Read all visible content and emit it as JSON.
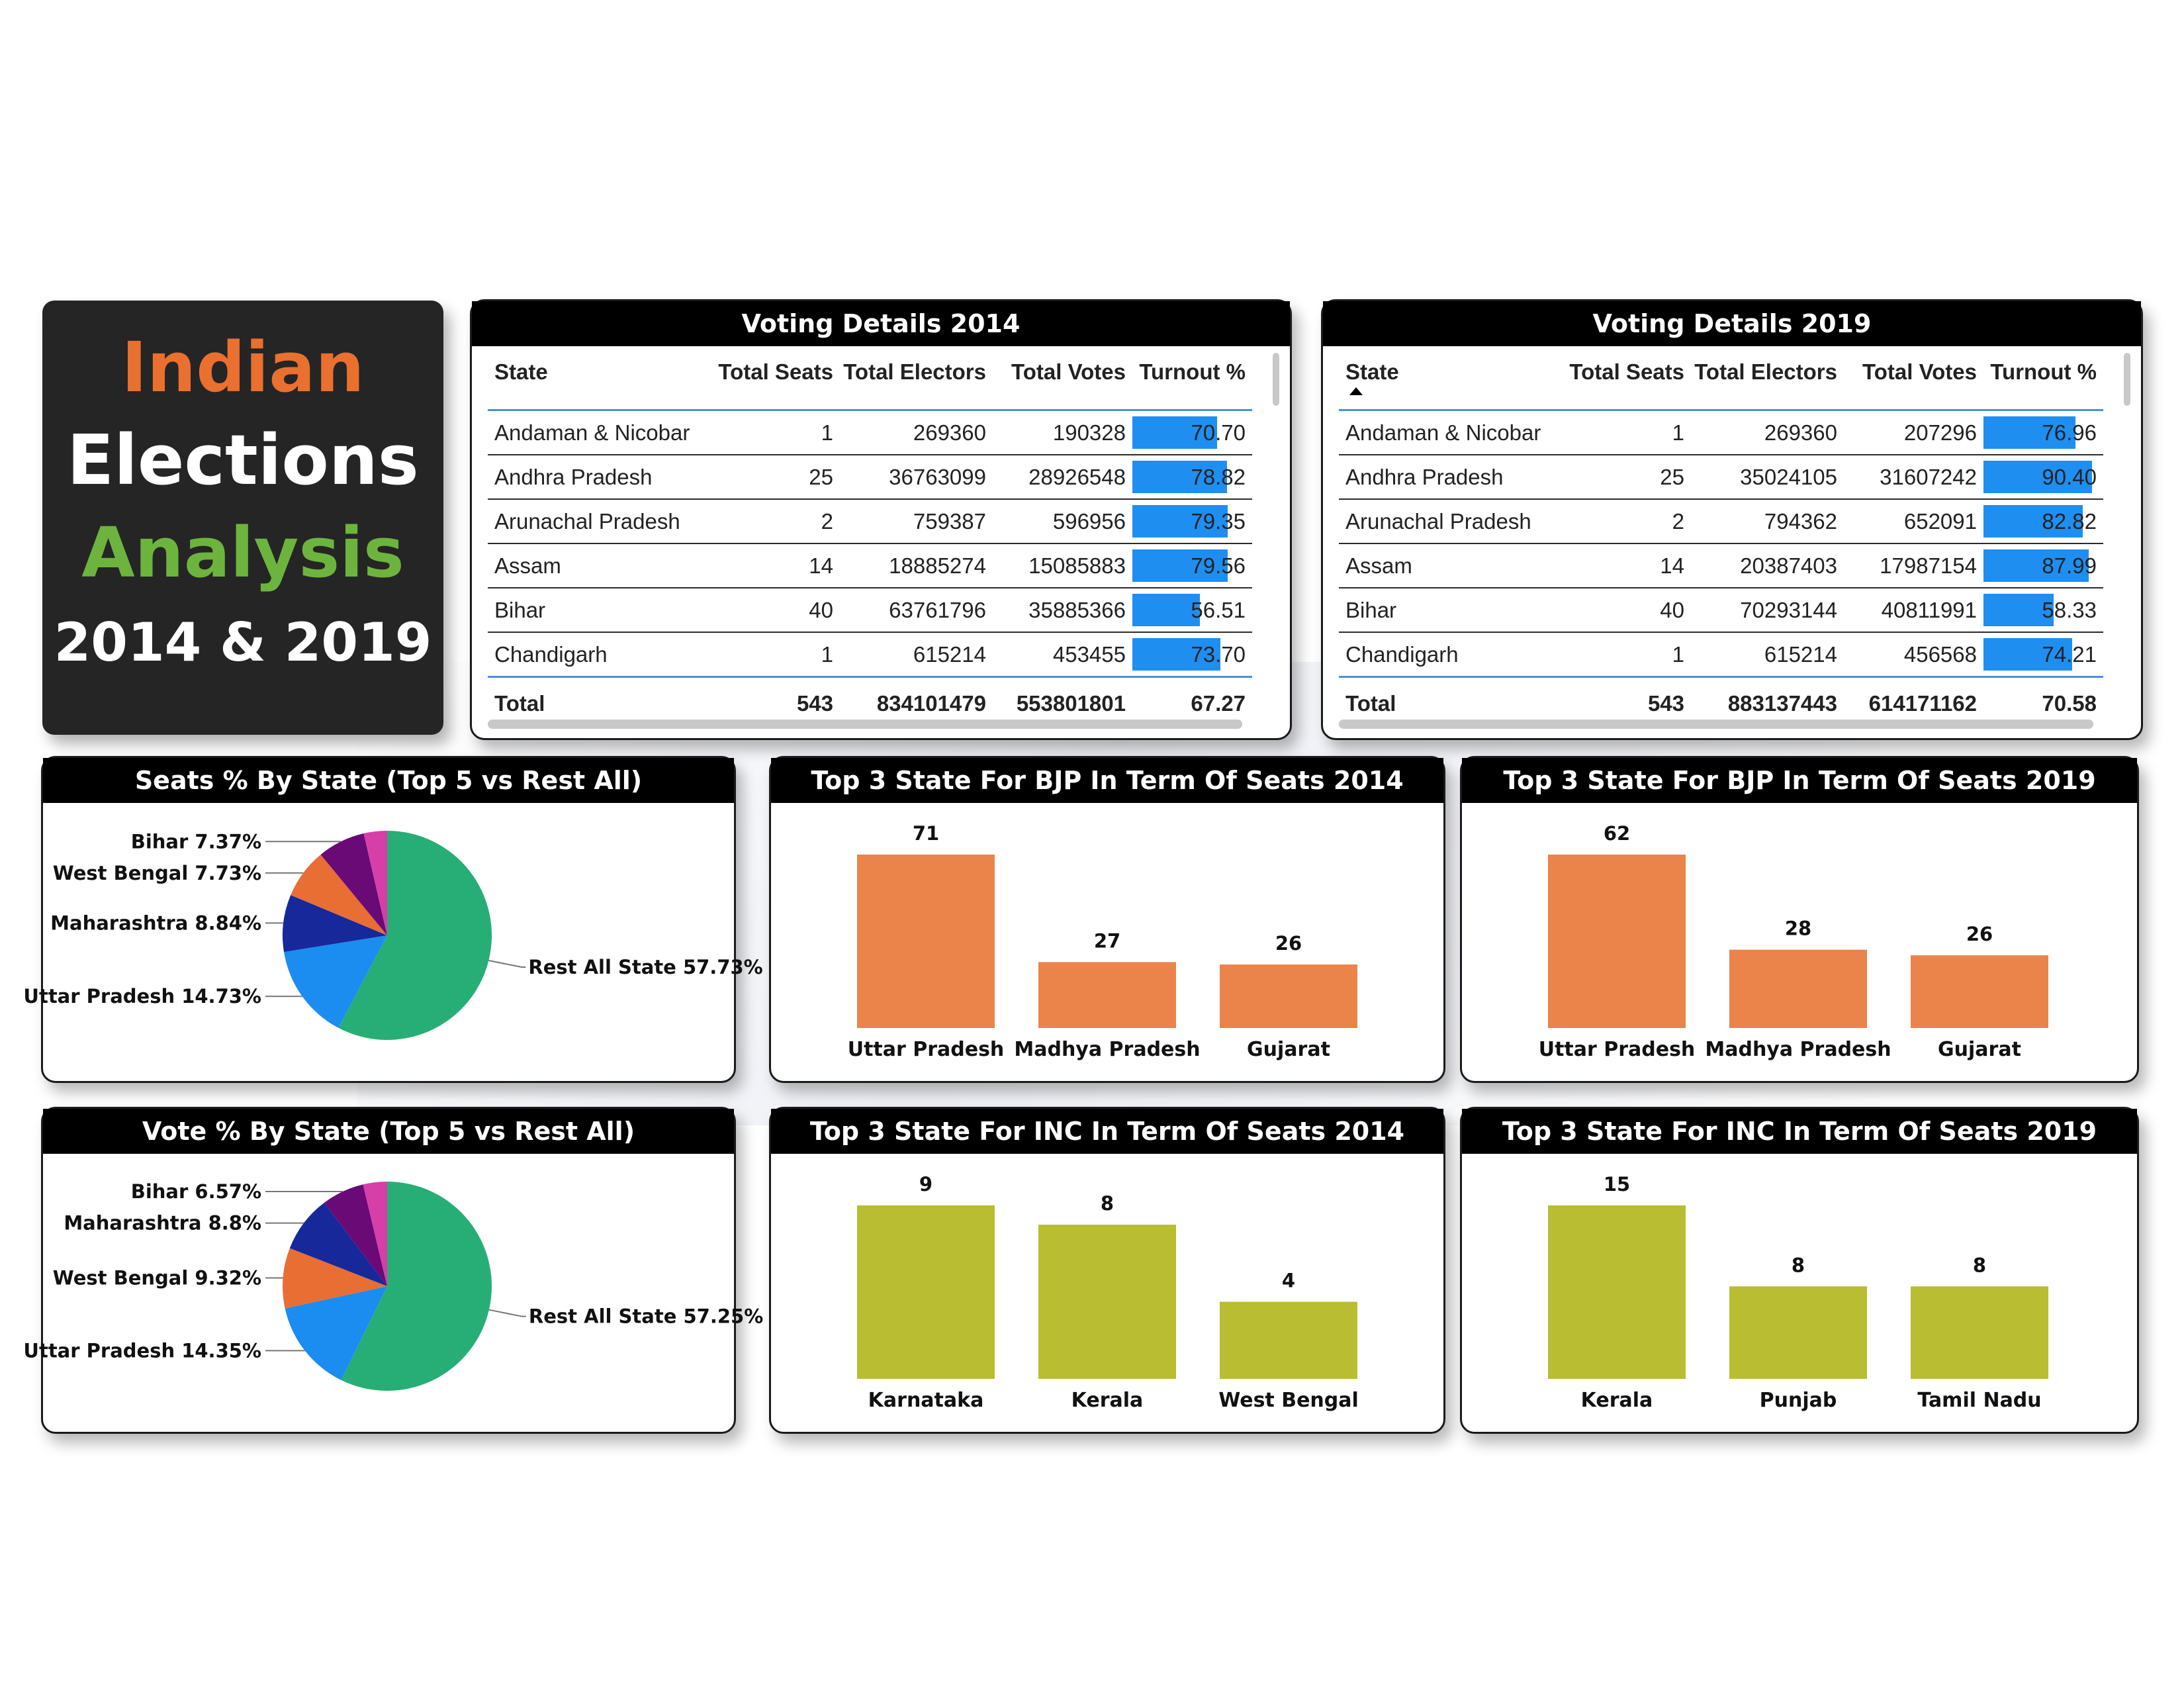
{
  "title": {
    "line1": "Indian",
    "line2": "Elections",
    "line3": "Analysis",
    "line4": "2014 & 2019"
  },
  "table_headers": [
    "State",
    "Total Seats",
    "Total Electors",
    "Total Votes",
    "Turnout %"
  ],
  "table2014": {
    "title": "Voting Details 2014",
    "rows": [
      {
        "state": "Andaman & Nicobar",
        "seats": "1",
        "electors": "269360",
        "votes": "190328",
        "turnout": "70.70"
      },
      {
        "state": "Andhra Pradesh",
        "seats": "25",
        "electors": "36763099",
        "votes": "28926548",
        "turnout": "78.82"
      },
      {
        "state": "Arunachal Pradesh",
        "seats": "2",
        "electors": "759387",
        "votes": "596956",
        "turnout": "79.35"
      },
      {
        "state": "Assam",
        "seats": "14",
        "electors": "18885274",
        "votes": "15085883",
        "turnout": "79.56"
      },
      {
        "state": "Bihar",
        "seats": "40",
        "electors": "63761796",
        "votes": "35885366",
        "turnout": "56.51"
      },
      {
        "state": "Chandigarh",
        "seats": "1",
        "electors": "615214",
        "votes": "453455",
        "turnout": "73.70"
      }
    ],
    "total": {
      "label": "Total",
      "seats": "543",
      "electors": "834101479",
      "votes": "553801801",
      "turnout": "67.27"
    }
  },
  "table2019": {
    "title": "Voting Details 2019",
    "rows": [
      {
        "state": "Andaman & Nicobar",
        "seats": "1",
        "electors": "269360",
        "votes": "207296",
        "turnout": "76.96"
      },
      {
        "state": "Andhra Pradesh",
        "seats": "25",
        "electors": "35024105",
        "votes": "31607242",
        "turnout": "90.40"
      },
      {
        "state": "Arunachal Pradesh",
        "seats": "2",
        "electors": "794362",
        "votes": "652091",
        "turnout": "82.82"
      },
      {
        "state": "Assam",
        "seats": "14",
        "electors": "20387403",
        "votes": "17987154",
        "turnout": "87.99"
      },
      {
        "state": "Bihar",
        "seats": "40",
        "electors": "70293144",
        "votes": "40811991",
        "turnout": "58.33"
      },
      {
        "state": "Chandigarh",
        "seats": "1",
        "electors": "615214",
        "votes": "456568",
        "turnout": "74.21"
      }
    ],
    "total": {
      "label": "Total",
      "seats": "543",
      "electors": "883137443",
      "votes": "614171162",
      "turnout": "70.58"
    }
  },
  "colors": {
    "bjp_bar": "#eb844a",
    "inc_bar": "#b8bd31",
    "turnout_bar": "#1f8ef1",
    "title_orange": "#e9702f",
    "title_green": "#6db43f",
    "pie": {
      "Rest All State": "#27ae77",
      "Uttar Pradesh": "#1b8cf0",
      "Maharashtra": "#16289a",
      "West Bengal": "#e86e34",
      "Bihar": "#6a0a77",
      "Other": "#d63fa7"
    }
  },
  "chart_data": [
    {
      "type": "pie",
      "title": "Seats % By State (Top 5 vs Rest All)",
      "slices": [
        {
          "label": "Rest All State 57.73%",
          "name": "Rest All State",
          "value": 57.73
        },
        {
          "label": "Uttar Pradesh 14.73%",
          "name": "Uttar Pradesh",
          "value": 14.73
        },
        {
          "label": "Maharashtra 8.84%",
          "name": "Maharashtra",
          "value": 8.84
        },
        {
          "label": "West Bengal 7.73%",
          "name": "West Bengal",
          "value": 7.73
        },
        {
          "label": "Bihar 7.37%",
          "name": "Bihar",
          "value": 7.37
        },
        {
          "label": "",
          "name": "Other",
          "value": 3.6
        }
      ]
    },
    {
      "type": "pie",
      "title": "Vote % By State (Top 5 vs Rest All)",
      "slices": [
        {
          "label": "Rest All State 57.25%",
          "name": "Rest All State",
          "value": 57.25
        },
        {
          "label": "Uttar Pradesh 14.35%",
          "name": "Uttar Pradesh",
          "value": 14.35
        },
        {
          "label": "West Bengal 9.32%",
          "name": "West Bengal",
          "value": 9.32
        },
        {
          "label": "Maharashtra 8.8%",
          "name": "Maharashtra",
          "value": 8.8
        },
        {
          "label": "Bihar 6.57%",
          "name": "Bihar",
          "value": 6.57
        },
        {
          "label": "",
          "name": "Other",
          "value": 3.71
        }
      ]
    },
    {
      "type": "bar",
      "title": "Top 3 State For BJP In Term Of Seats 2014",
      "categories": [
        "Uttar Pradesh",
        "Madhya Pradesh",
        "Gujarat"
      ],
      "values": [
        71,
        27,
        26
      ],
      "color": "bjp"
    },
    {
      "type": "bar",
      "title": "Top 3 State For BJP In Term Of Seats 2019",
      "categories": [
        "Uttar Pradesh",
        "Madhya Pradesh",
        "Gujarat"
      ],
      "values": [
        62,
        28,
        26
      ],
      "color": "bjp"
    },
    {
      "type": "bar",
      "title": "Top 3 State For INC In Term Of Seats 2014",
      "categories": [
        "Karnataka",
        "Kerala",
        "West Bengal"
      ],
      "values": [
        9,
        8,
        4
      ],
      "color": "inc"
    },
    {
      "type": "bar",
      "title": "Top 3 State For INC In Term Of Seats 2019",
      "categories": [
        "Kerala",
        "Punjab",
        "Tamil Nadu"
      ],
      "values": [
        15,
        8,
        8
      ],
      "color": "inc"
    }
  ]
}
